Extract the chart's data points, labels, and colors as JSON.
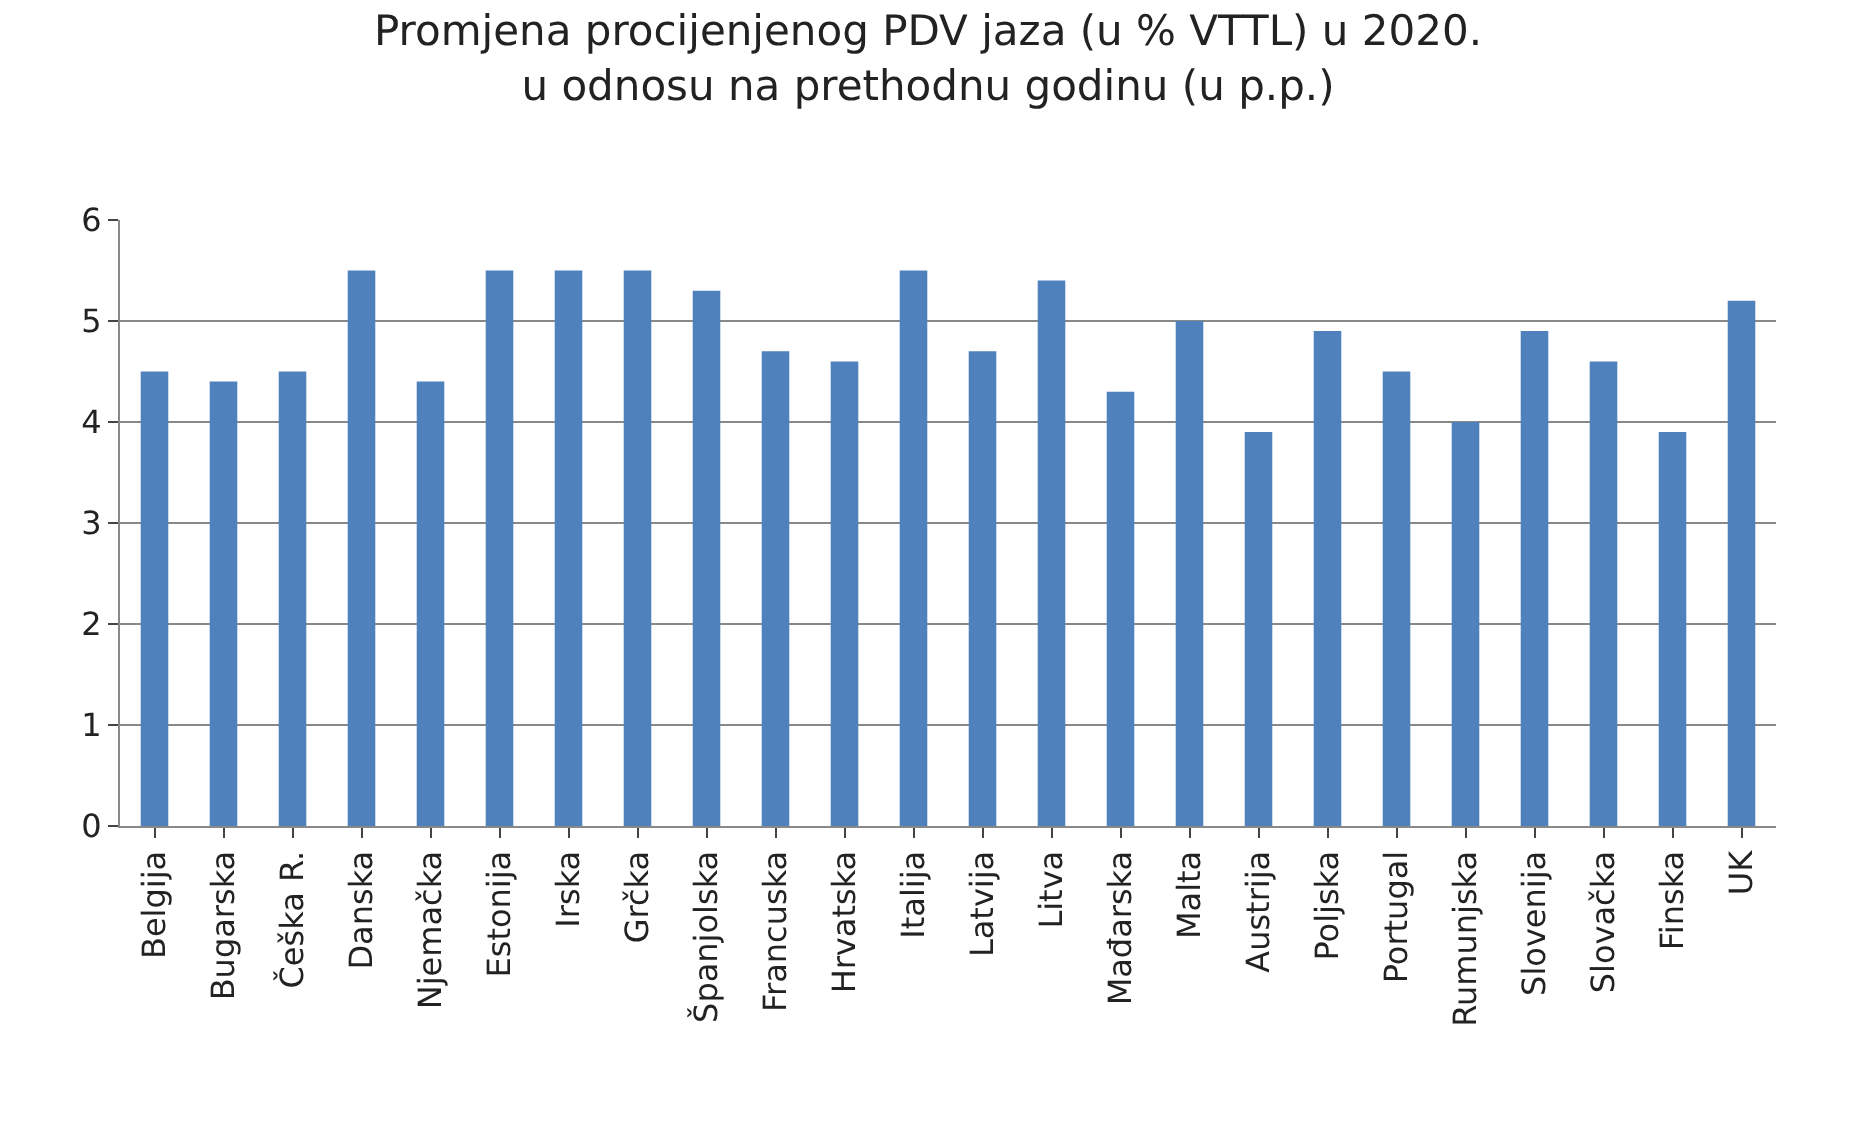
{
  "chart_data": {
    "type": "bar",
    "title": "Promjena procijenjenog PDV jaza (u % VTTL) u 2020.\nu odnosu na prethodnu godinu (u p.p.)",
    "categories": [
      "Belgija",
      "Bugarska",
      "Češka R.",
      "Danska",
      "Njemačka",
      "Estonija",
      "Irska",
      "Grčka",
      "Španjolska",
      "Francuska",
      "Hrvatska",
      "Italija",
      "Latvija",
      "Litva",
      "Mađarska",
      "Malta",
      "Austrija",
      "Poljska",
      "Portugal",
      "Rumunjska",
      "Slovenija",
      "Slovačka",
      "Finska",
      "UK"
    ],
    "values": [
      4.5,
      4.4,
      4.5,
      5.5,
      4.4,
      5.5,
      5.5,
      5.5,
      5.3,
      4.7,
      4.6,
      5.5,
      4.7,
      5.4,
      4.3,
      5.0,
      3.9,
      4.9,
      4.5,
      4.0,
      4.9,
      4.6,
      3.9,
      5.2
    ],
    "color": "#4f81bd",
    "ylim": [
      0,
      6
    ],
    "yticks": [
      0,
      1,
      2,
      3,
      4,
      5,
      6
    ],
    "grid": "y"
  }
}
